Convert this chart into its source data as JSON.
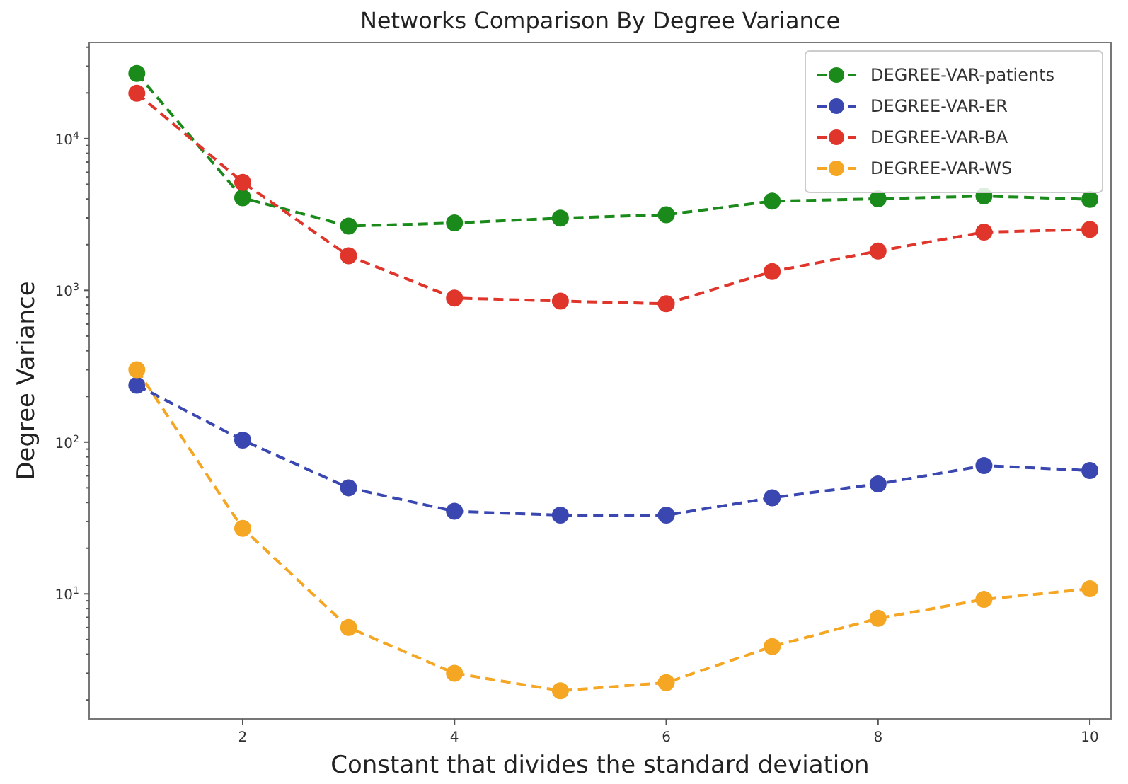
{
  "chart_data": {
    "type": "line",
    "title": "Networks Comparison By Degree Variance",
    "xlabel": "Constant that divides the standard deviation",
    "ylabel": "Degree Variance",
    "log": "y",
    "x": [
      1,
      2,
      3,
      4,
      5,
      6,
      7,
      8,
      9,
      10
    ],
    "xlim": [
      0.55,
      10.2
    ],
    "xticks": [
      2,
      4,
      6,
      8,
      10
    ],
    "ylim": [
      1.5,
      43000
    ],
    "yticks": [
      {
        "value": 2,
        "label": null
      },
      {
        "value": 3,
        "label": null
      },
      {
        "value": 4,
        "label": null
      },
      {
        "value": 5,
        "label": null
      },
      {
        "value": 6,
        "label": null
      },
      {
        "value": 7,
        "label": null
      },
      {
        "value": 8,
        "label": null
      },
      {
        "value": 9,
        "label": null
      },
      {
        "value": 10,
        "label": "10$^{1}$"
      },
      {
        "value": 20,
        "label": null
      },
      {
        "value": 30,
        "label": null
      },
      {
        "value": 40,
        "label": null
      },
      {
        "value": 50,
        "label": null
      },
      {
        "value": 60,
        "label": null
      },
      {
        "value": 70,
        "label": null
      },
      {
        "value": 80,
        "label": null
      },
      {
        "value": 90,
        "label": null
      },
      {
        "value": 100,
        "label": "10$^{2}$"
      },
      {
        "value": 200,
        "label": null
      },
      {
        "value": 300,
        "label": null
      },
      {
        "value": 400,
        "label": null
      },
      {
        "value": 500,
        "label": null
      },
      {
        "value": 600,
        "label": null
      },
      {
        "value": 700,
        "label": null
      },
      {
        "value": 800,
        "label": null
      },
      {
        "value": 900,
        "label": null
      },
      {
        "value": 1000,
        "label": "10$^{3}$"
      },
      {
        "value": 2000,
        "label": null
      },
      {
        "value": 3000,
        "label": null
      },
      {
        "value": 4000,
        "label": null
      },
      {
        "value": 5000,
        "label": null
      },
      {
        "value": 6000,
        "label": null
      },
      {
        "value": 7000,
        "label": null
      },
      {
        "value": 8000,
        "label": null
      },
      {
        "value": 9000,
        "label": null
      },
      {
        "value": 10000,
        "label": "10$^{4}$"
      },
      {
        "value": 20000,
        "label": null
      },
      {
        "value": 30000,
        "label": null
      },
      {
        "value": 40000,
        "label": null
      }
    ],
    "grid": false,
    "legend": "top right",
    "marker": "circle",
    "line_style": "dashed",
    "series": [
      {
        "name": "DEGREE-VAR-patients",
        "color": "#1a8a1a",
        "values": [
          26900,
          4070,
          2650,
          2780,
          2990,
          3150,
          3870,
          4010,
          4180,
          3980
        ]
      },
      {
        "name": "DEGREE-VAR-ER",
        "color": "#3a47b0",
        "values": [
          237,
          103,
          50,
          35,
          33,
          33,
          43,
          53,
          70,
          65
        ]
      },
      {
        "name": "DEGREE-VAR-BA",
        "color": "#e0352b",
        "values": [
          19900,
          5150,
          1690,
          890,
          850,
          816,
          1330,
          1815,
          2420,
          2520
        ]
      },
      {
        "name": "DEGREE-VAR-WS",
        "color": "#f5a623",
        "values": [
          300,
          27,
          6,
          3,
          2.3,
          2.6,
          4.5,
          6.9,
          9.2,
          10.8
        ]
      }
    ]
  }
}
